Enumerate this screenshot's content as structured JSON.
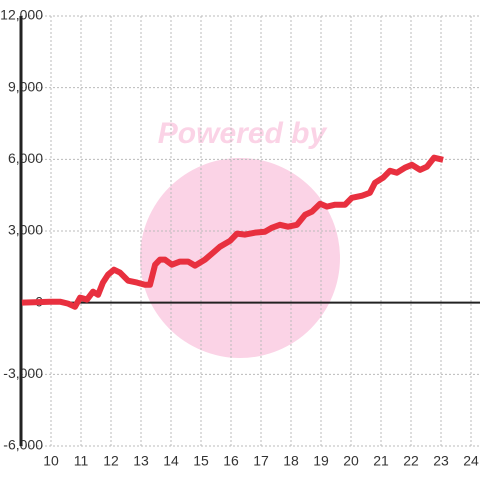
{
  "chart_data": {
    "type": "line",
    "watermark": "Powered by",
    "x": [
      9.03,
      9.97,
      10.3,
      10.57,
      10.8,
      10.97,
      11.2,
      11.4,
      11.57,
      11.73,
      11.9,
      12.1,
      12.3,
      12.57,
      12.87,
      13.13,
      13.3,
      13.47,
      13.63,
      13.8,
      14.03,
      14.3,
      14.57,
      14.8,
      15.13,
      15.4,
      15.63,
      15.97,
      16.2,
      16.47,
      16.8,
      17.13,
      17.37,
      17.63,
      17.9,
      18.2,
      18.47,
      18.7,
      18.97,
      19.2,
      19.47,
      19.8,
      20.03,
      20.37,
      20.63,
      20.8,
      21.07,
      21.3,
      21.53,
      21.8,
      22.03,
      22.3,
      22.53,
      22.77,
      23.07
    ],
    "series": [
      {
        "color": "#e8303f",
        "values": [
          0,
          40,
          40,
          -40,
          -170,
          210,
          130,
          460,
          330,
          840,
          1170,
          1380,
          1260,
          920,
          840,
          750,
          750,
          1590,
          1800,
          1800,
          1590,
          1720,
          1720,
          1550,
          1800,
          2090,
          2340,
          2590,
          2890,
          2850,
          2930,
          2970,
          3140,
          3260,
          3180,
          3260,
          3680,
          3810,
          4140,
          4020,
          4100,
          4100,
          4390,
          4480,
          4600,
          5020,
          5230,
          5520,
          5440,
          5650,
          5770,
          5560,
          5690,
          6070,
          5980
        ]
      }
    ],
    "xlim": [
      9,
      24.3
    ],
    "xticks": [
      10,
      11,
      12,
      13,
      14,
      15,
      16,
      17,
      18,
      19,
      20,
      21,
      22,
      23,
      24
    ],
    "ylim": [
      -6000,
      12000
    ],
    "yticks": [
      {
        "value": -6000,
        "label": "-6,000"
      },
      {
        "value": -3000,
        "label": "-3,000"
      },
      0,
      {
        "value": 3000,
        "label": "3,000"
      },
      {
        "value": 6000,
        "label": "6,000"
      },
      {
        "value": 9000,
        "label": "9,000"
      },
      {
        "value": 12000,
        "label": "12,000"
      }
    ],
    "grid": true
  }
}
